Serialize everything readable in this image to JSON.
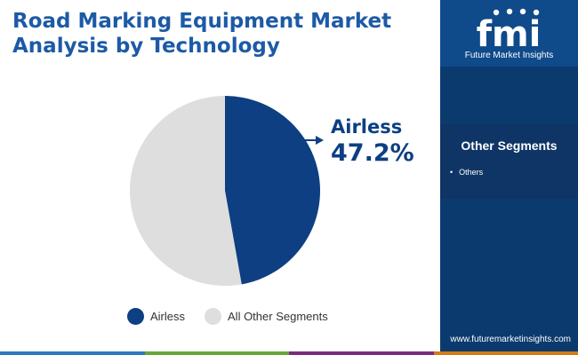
{
  "title_lines": [
    "Road Marking Equipment Market",
    "Analysis by Technology"
  ],
  "chart_data": {
    "type": "pie",
    "title": "Road Marking Equipment Market Analysis by Technology",
    "categories": [
      "Airless",
      "All Other Segments"
    ],
    "values": [
      47.2,
      52.8
    ],
    "colors": [
      "#0d3f82",
      "#dedede"
    ],
    "callout": {
      "label": "Airless",
      "value_text": "47.2%"
    },
    "legend_position": "bottom"
  },
  "legend": [
    {
      "label": "Airless",
      "color": "#0d3f82"
    },
    {
      "label": "All Other Segments",
      "color": "#dedede"
    }
  ],
  "sidebar": {
    "logo_text": "fmi",
    "brand_name": "Future Market Insights",
    "other_segments_heading": "Other Segments",
    "other_segments_items": [
      "Others"
    ],
    "website": "www.futuremarketinsights.com"
  },
  "colors": {
    "accent": "#1d5aa6",
    "dark_navy": "#0b3a6e",
    "airless": "#0d3f82",
    "others": "#dedede",
    "bottom_bar": [
      "#2e77c1",
      "#6aa637",
      "#7b2c7e",
      "#d47a17"
    ]
  }
}
